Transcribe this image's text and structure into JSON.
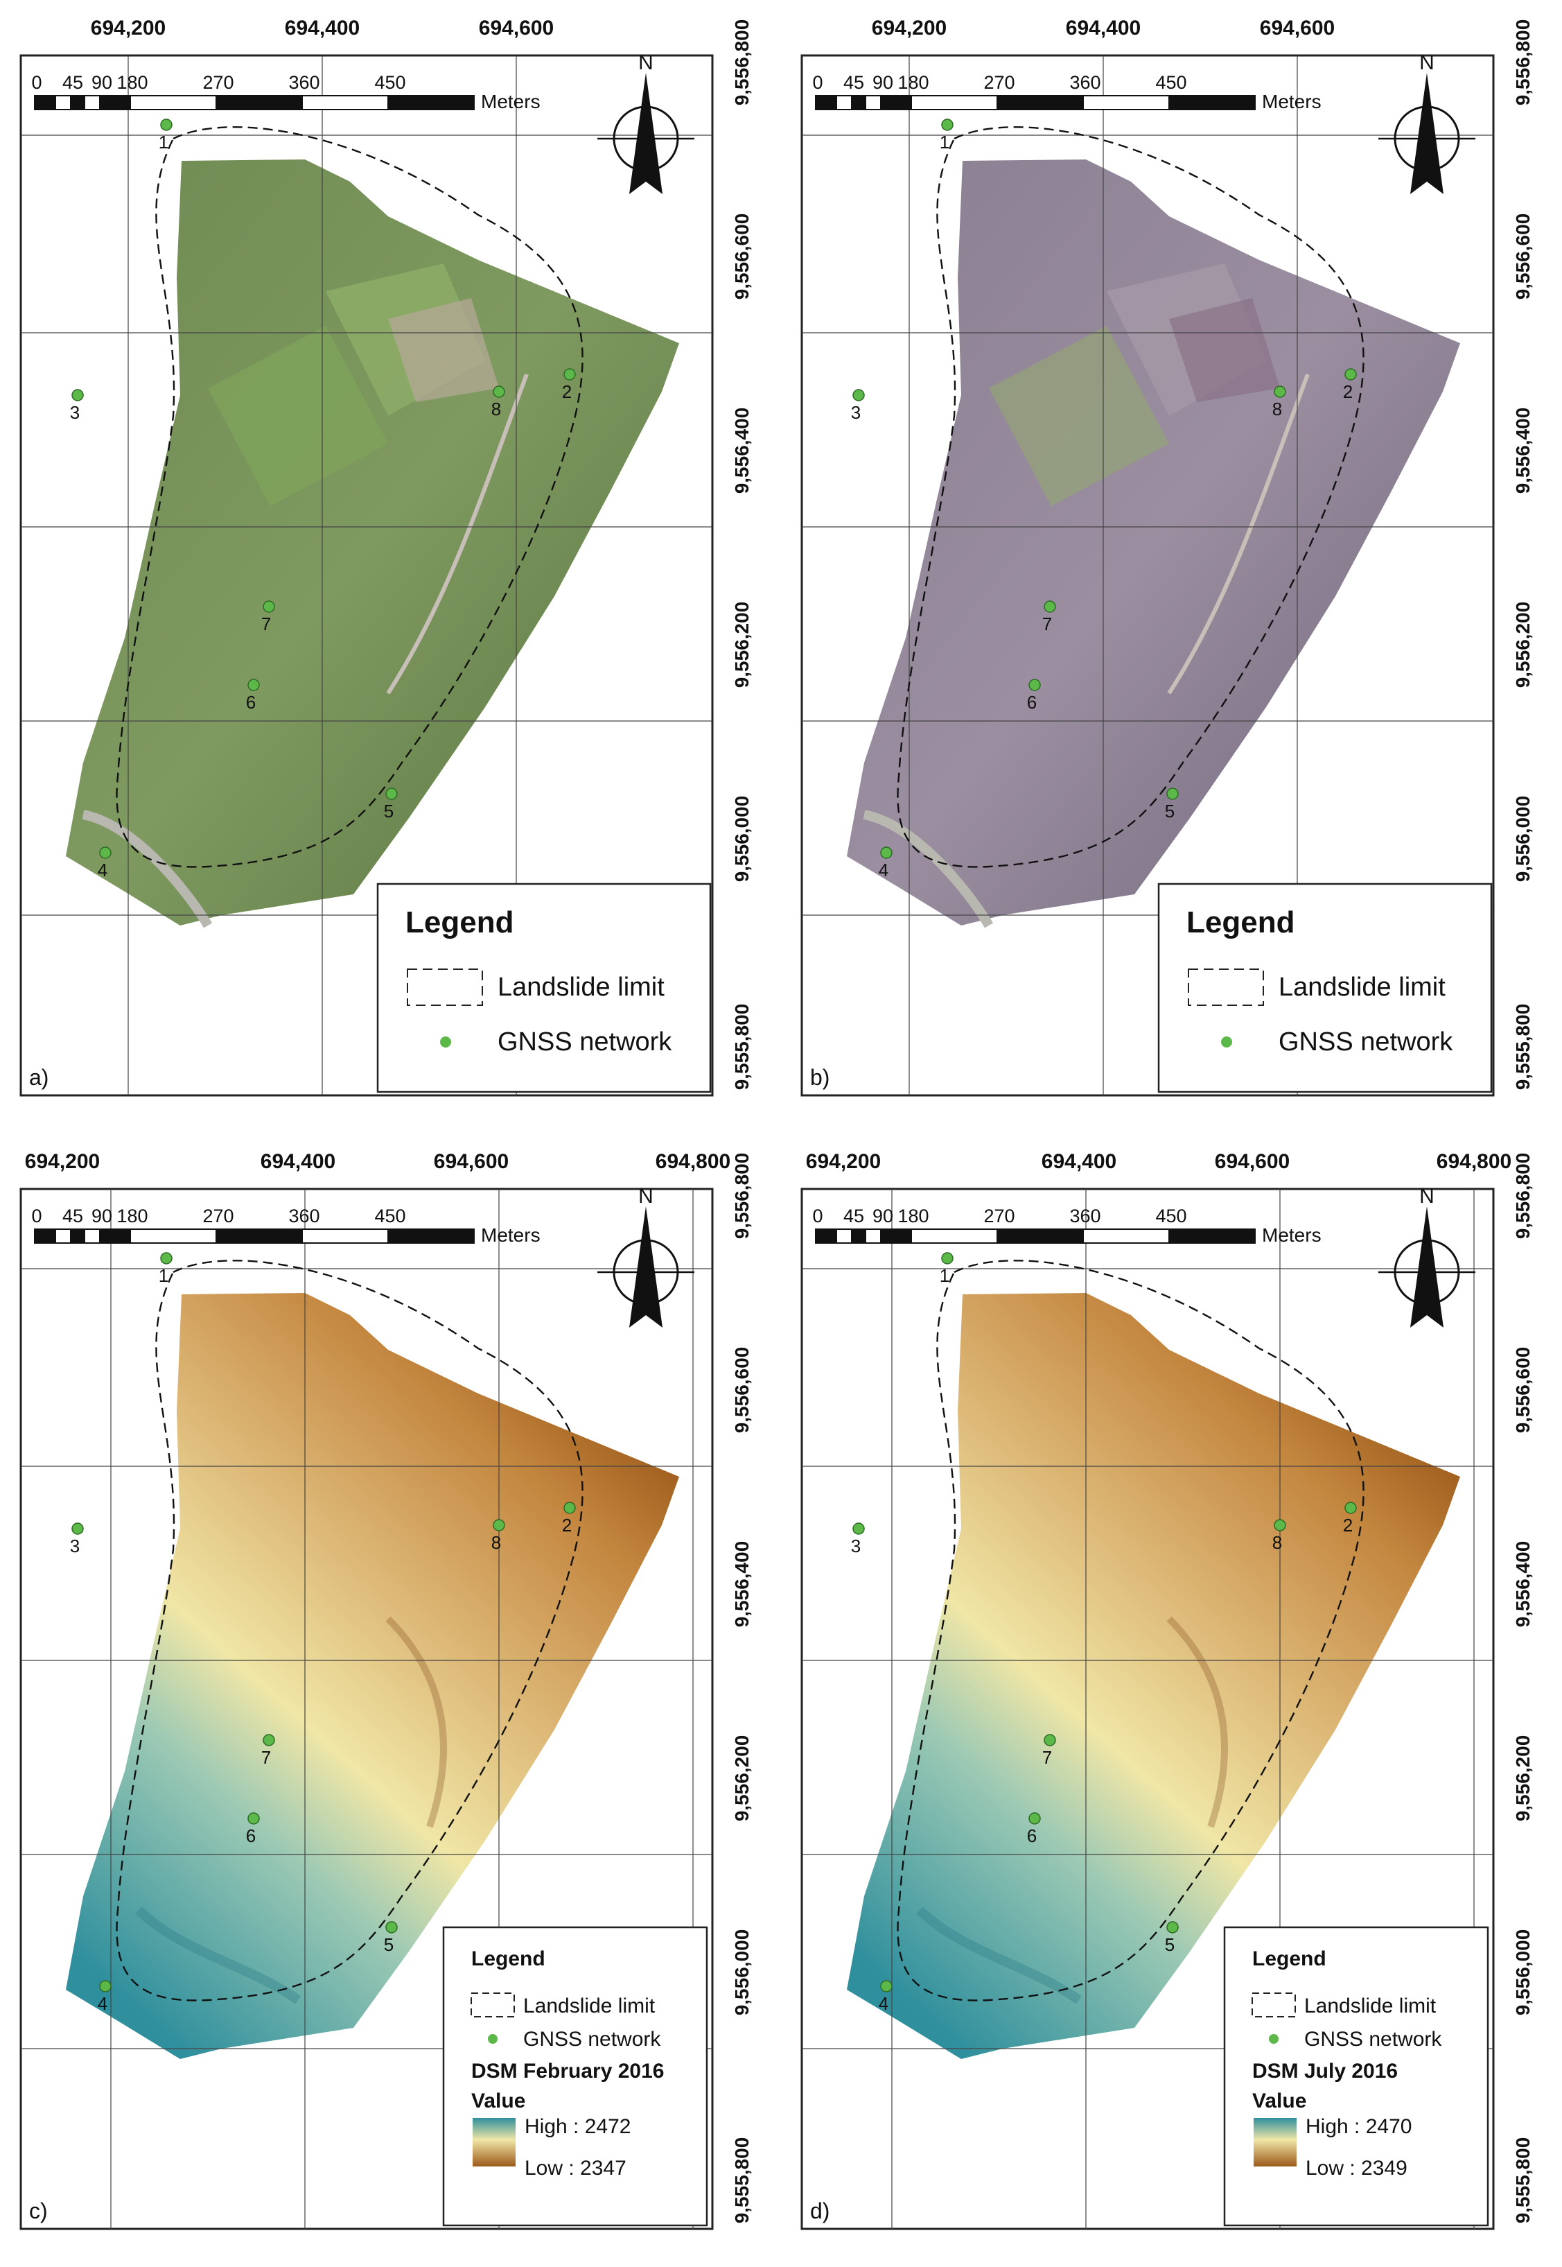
{
  "panels": [
    {
      "id": "a",
      "label": "a)",
      "kind": "ortho",
      "x_ticks": [
        "694,200",
        "694,400",
        "694,600"
      ],
      "y_ticks": [
        "9,556,800",
        "9,556,600",
        "9,556,400",
        "9,556,200",
        "9,556,000",
        "9,555,800"
      ],
      "scale_bar": {
        "ticks": [
          "0",
          "45",
          "90",
          "180",
          "270",
          "360",
          "450"
        ],
        "unit": "Meters"
      },
      "north": "N",
      "legend": {
        "title": "Legend",
        "items": [
          "Landslide limit",
          "GNSS network"
        ]
      },
      "gnss_points": [
        "1",
        "2",
        "3",
        "4",
        "5",
        "6",
        "7",
        "8"
      ]
    },
    {
      "id": "b",
      "label": "b)",
      "kind": "ortho",
      "x_ticks": [
        "694,200",
        "694,400",
        "694,600"
      ],
      "y_ticks": [
        "9,556,800",
        "9,556,600",
        "9,556,400",
        "9,556,200",
        "9,556,000",
        "9,555,800"
      ],
      "scale_bar": {
        "ticks": [
          "0",
          "45",
          "90",
          "180",
          "270",
          "360",
          "450"
        ],
        "unit": "Meters"
      },
      "north": "N",
      "legend": {
        "title": "Legend",
        "items": [
          "Landslide limit",
          "GNSS network"
        ]
      },
      "gnss_points": [
        "1",
        "2",
        "3",
        "4",
        "5",
        "6",
        "7",
        "8"
      ]
    },
    {
      "id": "c",
      "label": "c)",
      "kind": "dsm",
      "x_ticks": [
        "694,200",
        "694,400",
        "694,600",
        "694,800"
      ],
      "y_ticks": [
        "9,556,800",
        "9,556,600",
        "9,556,400",
        "9,556,200",
        "9,556,000",
        "9,555,800"
      ],
      "scale_bar": {
        "ticks": [
          "0",
          "45",
          "90",
          "180",
          "270",
          "360",
          "450"
        ],
        "unit": "Meters"
      },
      "north": "N",
      "legend": {
        "title": "Legend",
        "items": [
          "Landslide limit",
          "GNSS network"
        ],
        "dsm_title": "DSM February 2016",
        "value_label": "Value",
        "high": "High : 2472",
        "low": "Low : 2347"
      },
      "gnss_points": [
        "1",
        "2",
        "3",
        "4",
        "5",
        "6",
        "7",
        "8"
      ]
    },
    {
      "id": "d",
      "label": "d)",
      "kind": "dsm",
      "x_ticks": [
        "694,200",
        "694,400",
        "694,600",
        "694,800"
      ],
      "y_ticks": [
        "9,556,800",
        "9,556,600",
        "9,556,400",
        "9,556,200",
        "9,556,000",
        "9,555,800"
      ],
      "scale_bar": {
        "ticks": [
          "0",
          "45",
          "90",
          "180",
          "270",
          "360",
          "450"
        ],
        "unit": "Meters"
      },
      "north": "N",
      "legend": {
        "title": "Legend",
        "items": [
          "Landslide limit",
          "GNSS network"
        ],
        "dsm_title": "DSM July 2016",
        "value_label": "Value",
        "high": "High : 2470",
        "low": "Low : 2349"
      },
      "gnss_points": [
        "1",
        "2",
        "3",
        "4",
        "5",
        "6",
        "7",
        "8"
      ]
    }
  ],
  "colors": {
    "ortho_a": "#6f8a52",
    "ortho_b": "#8a7e92",
    "dsm_high": "#2f8f9d",
    "dsm_mid": "#f0e6a6",
    "dsm_low": "#9c5a1a",
    "gnss_point": "#5cb848"
  }
}
